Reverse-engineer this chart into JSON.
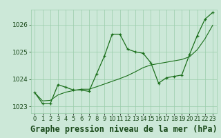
{
  "title": "Graphe pression niveau de la mer (hPa)",
  "x_labels": [
    "0",
    "1",
    "2",
    "3",
    "4",
    "5",
    "6",
    "7",
    "8",
    "9",
    "10",
    "11",
    "12",
    "13",
    "14",
    "15",
    "16",
    "17",
    "18",
    "19",
    "20",
    "21",
    "22",
    "23"
  ],
  "hours": [
    0,
    1,
    2,
    3,
    4,
    5,
    6,
    7,
    8,
    9,
    10,
    11,
    12,
    13,
    14,
    15,
    16,
    17,
    18,
    19,
    20,
    21,
    22,
    23
  ],
  "line_main": [
    1023.5,
    1023.1,
    1023.1,
    1023.8,
    1023.7,
    1023.6,
    1023.6,
    1023.55,
    1024.2,
    1024.85,
    1025.65,
    1025.65,
    1025.1,
    1025.0,
    1024.95,
    1024.6,
    1023.85,
    1024.05,
    1024.1,
    1024.15,
    1024.9,
    1025.6,
    1026.2,
    1026.45
  ],
  "line_smooth": [
    1023.5,
    1023.2,
    1023.22,
    1023.42,
    1023.52,
    1023.58,
    1023.63,
    1023.63,
    1023.72,
    1023.82,
    1023.92,
    1024.02,
    1024.13,
    1024.27,
    1024.42,
    1024.52,
    1024.57,
    1024.62,
    1024.67,
    1024.72,
    1024.82,
    1025.08,
    1025.48,
    1025.98
  ],
  "line_color": "#1a6e1a",
  "bg_color": "#cce8d8",
  "grid_color": "#99ccaa",
  "text_color": "#1a4a1a",
  "ylim_min": 1022.75,
  "ylim_max": 1026.55,
  "yticks": [
    1023,
    1024,
    1025,
    1026
  ],
  "title_fontsize": 8.5,
  "tick_fontsize": 6.5,
  "xlabel_fontsize": 6
}
